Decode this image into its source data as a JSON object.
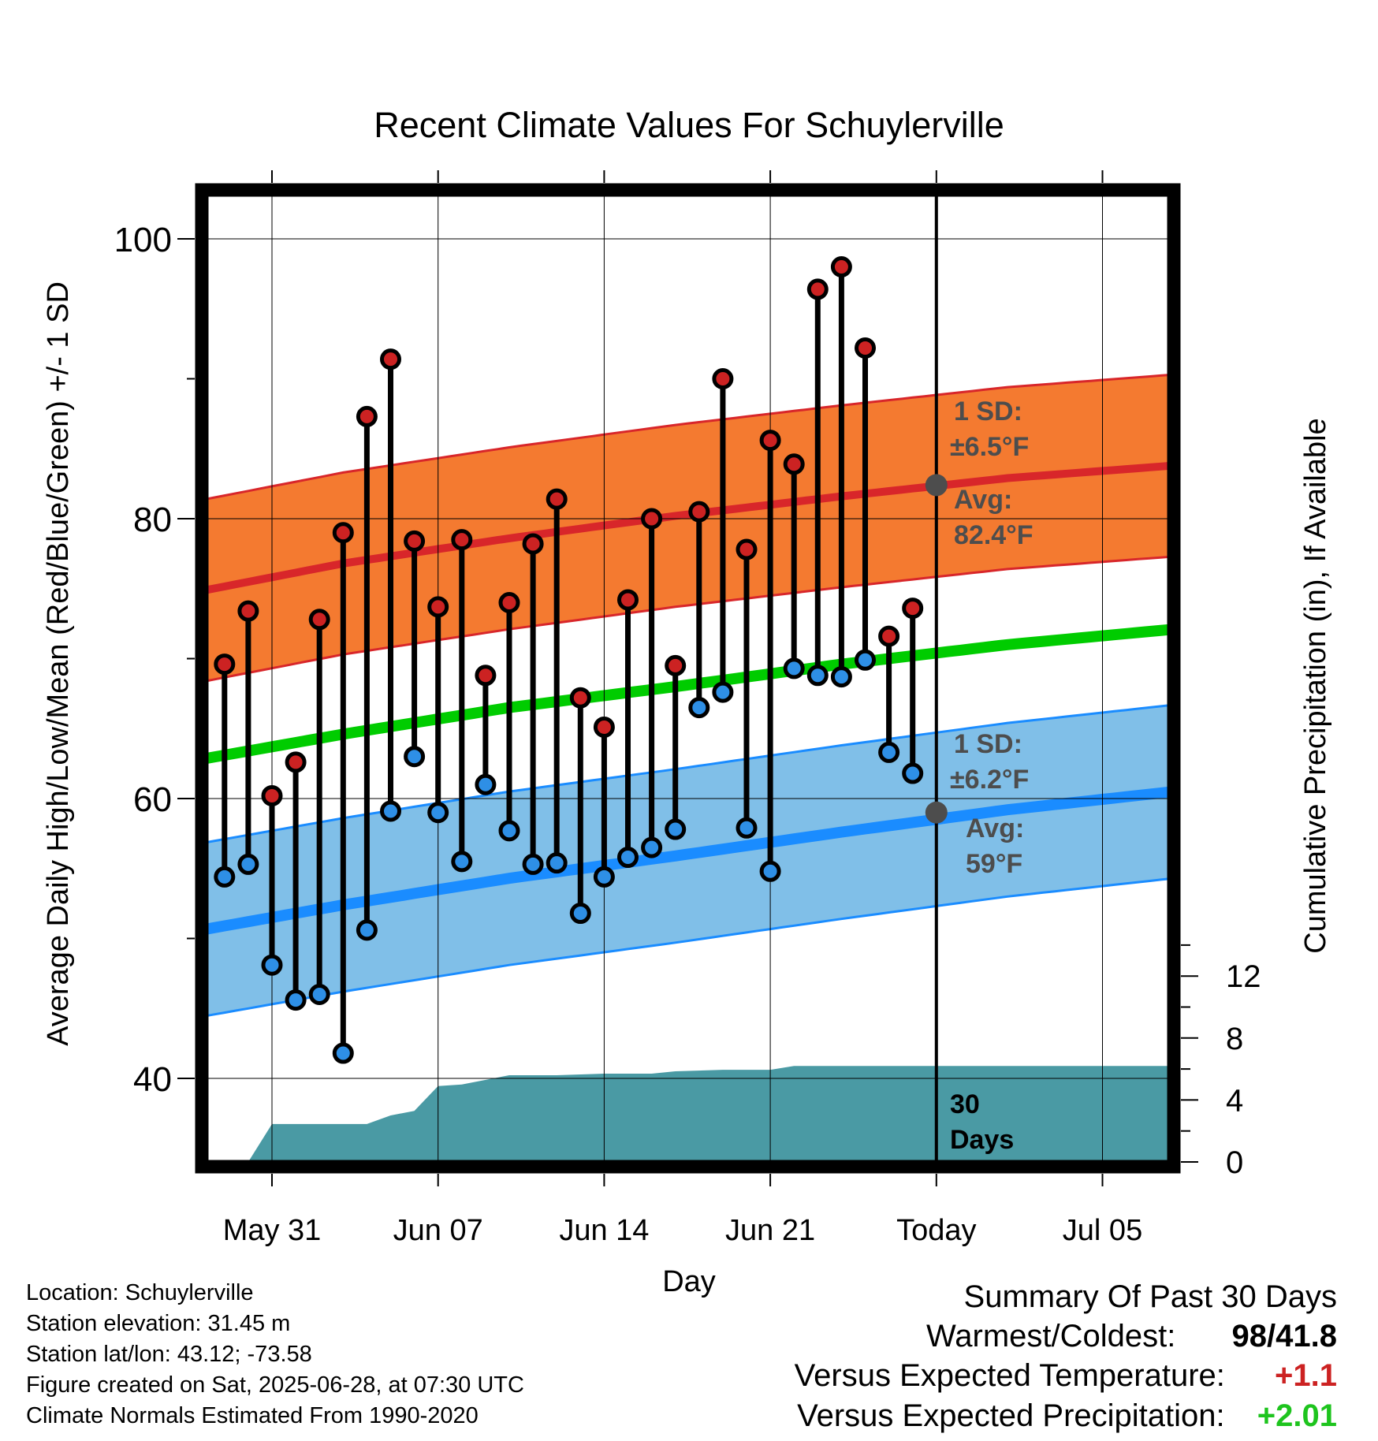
{
  "chart_data": {
    "type": "line",
    "title": "Recent Climate Values For Schuylerville",
    "xlabel": "Day",
    "ylabel": "Average Daily High/Low/Mean (Red/Blue/Green) +/- 1 SD",
    "y2label": "Cumulative Precipitation (in), If Available",
    "ylim": [
      33,
      104
    ],
    "y2lim": [
      0,
      15
    ],
    "xlim": [
      "2025-05-27",
      "2025-07-08"
    ],
    "y_ticks": [
      40,
      60,
      80,
      100
    ],
    "y2_ticks": [
      0,
      4,
      8,
      12
    ],
    "x_ticks": [
      {
        "date": "2025-05-31",
        "label": "May 31"
      },
      {
        "date": "2025-06-07",
        "label": "Jun 07"
      },
      {
        "date": "2025-06-14",
        "label": "Jun 14"
      },
      {
        "date": "2025-06-21",
        "label": "Jun 21"
      },
      {
        "date": "2025-06-28",
        "label": "Today"
      },
      {
        "date": "2025-07-05",
        "label": "Jul 05"
      }
    ],
    "grid": true,
    "today": "2025-06-28",
    "days_label": "30 Days",
    "daily": [
      {
        "date": "2025-05-29",
        "high": 69.6,
        "low": 54.4
      },
      {
        "date": "2025-05-30",
        "high": 73.4,
        "low": 55.3
      },
      {
        "date": "2025-05-31",
        "high": 60.2,
        "low": 48.1
      },
      {
        "date": "2025-06-01",
        "high": 62.6,
        "low": 45.6
      },
      {
        "date": "2025-06-02",
        "high": 72.8,
        "low": 46.0
      },
      {
        "date": "2025-06-03",
        "high": 79.0,
        "low": 41.8
      },
      {
        "date": "2025-06-04",
        "high": 87.3,
        "low": 50.6
      },
      {
        "date": "2025-06-05",
        "high": 91.4,
        "low": 59.1
      },
      {
        "date": "2025-06-06",
        "high": 78.4,
        "low": 63.0
      },
      {
        "date": "2025-06-07",
        "high": 73.7,
        "low": 59.0
      },
      {
        "date": "2025-06-08",
        "high": 78.5,
        "low": 55.5
      },
      {
        "date": "2025-06-09",
        "high": 68.8,
        "low": 61.0
      },
      {
        "date": "2025-06-10",
        "high": 74.0,
        "low": 57.7
      },
      {
        "date": "2025-06-11",
        "high": 78.2,
        "low": 55.3
      },
      {
        "date": "2025-06-12",
        "high": 81.4,
        "low": 55.4
      },
      {
        "date": "2025-06-13",
        "high": 67.2,
        "low": 51.8
      },
      {
        "date": "2025-06-14",
        "high": 65.1,
        "low": 54.4
      },
      {
        "date": "2025-06-15",
        "high": 74.2,
        "low": 55.8
      },
      {
        "date": "2025-06-16",
        "high": 80.0,
        "low": 56.5
      },
      {
        "date": "2025-06-17",
        "high": 69.5,
        "low": 57.8
      },
      {
        "date": "2025-06-18",
        "high": 80.5,
        "low": 66.5
      },
      {
        "date": "2025-06-19",
        "high": 90.0,
        "low": 67.6
      },
      {
        "date": "2025-06-20",
        "high": 77.8,
        "low": 57.9
      },
      {
        "date": "2025-06-21",
        "high": 85.6,
        "low": 54.8
      },
      {
        "date": "2025-06-22",
        "high": 83.9,
        "low": 69.3
      },
      {
        "date": "2025-06-23",
        "high": 96.4,
        "low": 68.8
      },
      {
        "date": "2025-06-24",
        "high": 98.0,
        "low": 68.7
      },
      {
        "date": "2025-06-25",
        "high": 92.2,
        "low": 69.9
      },
      {
        "date": "2025-06-26",
        "high": 71.6,
        "low": 63.3
      },
      {
        "date": "2025-06-27",
        "high": 73.6,
        "low": 61.8
      }
    ],
    "normals": [
      {
        "date": "2025-05-27",
        "high": 74.5,
        "low": 50.3,
        "mean": 62.5
      },
      {
        "date": "2025-06-03",
        "high": 76.8,
        "low": 52.4,
        "mean": 64.6
      },
      {
        "date": "2025-06-10",
        "high": 78.6,
        "low": 54.3,
        "mean": 66.5
      },
      {
        "date": "2025-06-17",
        "high": 80.2,
        "low": 55.9,
        "mean": 68.0
      },
      {
        "date": "2025-06-24",
        "high": 81.6,
        "low": 57.6,
        "mean": 69.6
      },
      {
        "date": "2025-07-01",
        "high": 82.9,
        "low": 59.2,
        "mean": 71.0
      },
      {
        "date": "2025-07-08",
        "high": 83.8,
        "low": 60.5,
        "mean": 72.1
      }
    ],
    "high_sd": 6.5,
    "low_sd": 6.2,
    "precip_cumulative": [
      {
        "date": "2025-05-27",
        "value": 0
      },
      {
        "date": "2025-05-29",
        "value": 0
      },
      {
        "date": "2025-05-30",
        "value": 0
      },
      {
        "date": "2025-05-31",
        "value": 2.45
      },
      {
        "date": "2025-06-03",
        "value": 2.45
      },
      {
        "date": "2025-06-04",
        "value": 2.45
      },
      {
        "date": "2025-06-05",
        "value": 3.0
      },
      {
        "date": "2025-06-06",
        "value": 3.3
      },
      {
        "date": "2025-06-07",
        "value": 4.9
      },
      {
        "date": "2025-06-08",
        "value": 5.0
      },
      {
        "date": "2025-06-10",
        "value": 5.6
      },
      {
        "date": "2025-06-12",
        "value": 5.6
      },
      {
        "date": "2025-06-14",
        "value": 5.7
      },
      {
        "date": "2025-06-16",
        "value": 5.7
      },
      {
        "date": "2025-06-17",
        "value": 5.85
      },
      {
        "date": "2025-06-19",
        "value": 5.95
      },
      {
        "date": "2025-06-21",
        "value": 5.95
      },
      {
        "date": "2025-06-22",
        "value": 6.2
      },
      {
        "date": "2025-06-28",
        "value": 6.2
      },
      {
        "date": "2025-07-08",
        "value": 6.2
      }
    ],
    "annotations": {
      "high_sd_line1": "1 SD:",
      "high_sd_line2": "±6.5°F",
      "high_avg_line1": "Avg:",
      "high_avg_line2": "82.4°F",
      "high_avg_value": 82.4,
      "low_sd_line1": "1 SD:",
      "low_sd_line2": "±6.2°F",
      "low_avg_line1": "Avg:",
      "low_avg_line2": "59°F",
      "low_avg_value": 59
    },
    "colors": {
      "high_band": "#f47a30",
      "high_line": "#d8262a",
      "low_band": "#80bfe8",
      "low_line": "#1a8cff",
      "mean_line": "#00cc00",
      "precip": "#4a9aa4",
      "high_marker": "#cc2222",
      "low_marker": "#2e8fe6",
      "annotation_text": "#4d4d4d",
      "today_marker": "#4d4d4d"
    }
  },
  "info": {
    "location": "Location: Schuylerville",
    "elevation": "Station elevation: 31.45 m",
    "latlon": "Station lat/lon: 43.12; -73.58",
    "created": "Figure created on Sat, 2025-06-28, at 07:30 UTC",
    "normals": "Climate Normals Estimated From 1990-2020"
  },
  "summary": {
    "title": "Summary Of Past 30 Days",
    "warm_cold_label": "Warmest/Coldest:",
    "warmest": "98",
    "separator": "/",
    "coldest": "41.8",
    "temp_label": "Versus Expected Temperature:",
    "temp_value": "+1.1",
    "temp_color": "#cc2222",
    "precip_label": "Versus Expected Precipitation:",
    "precip_value": "+2.01",
    "precip_color": "#1ec41e"
  }
}
